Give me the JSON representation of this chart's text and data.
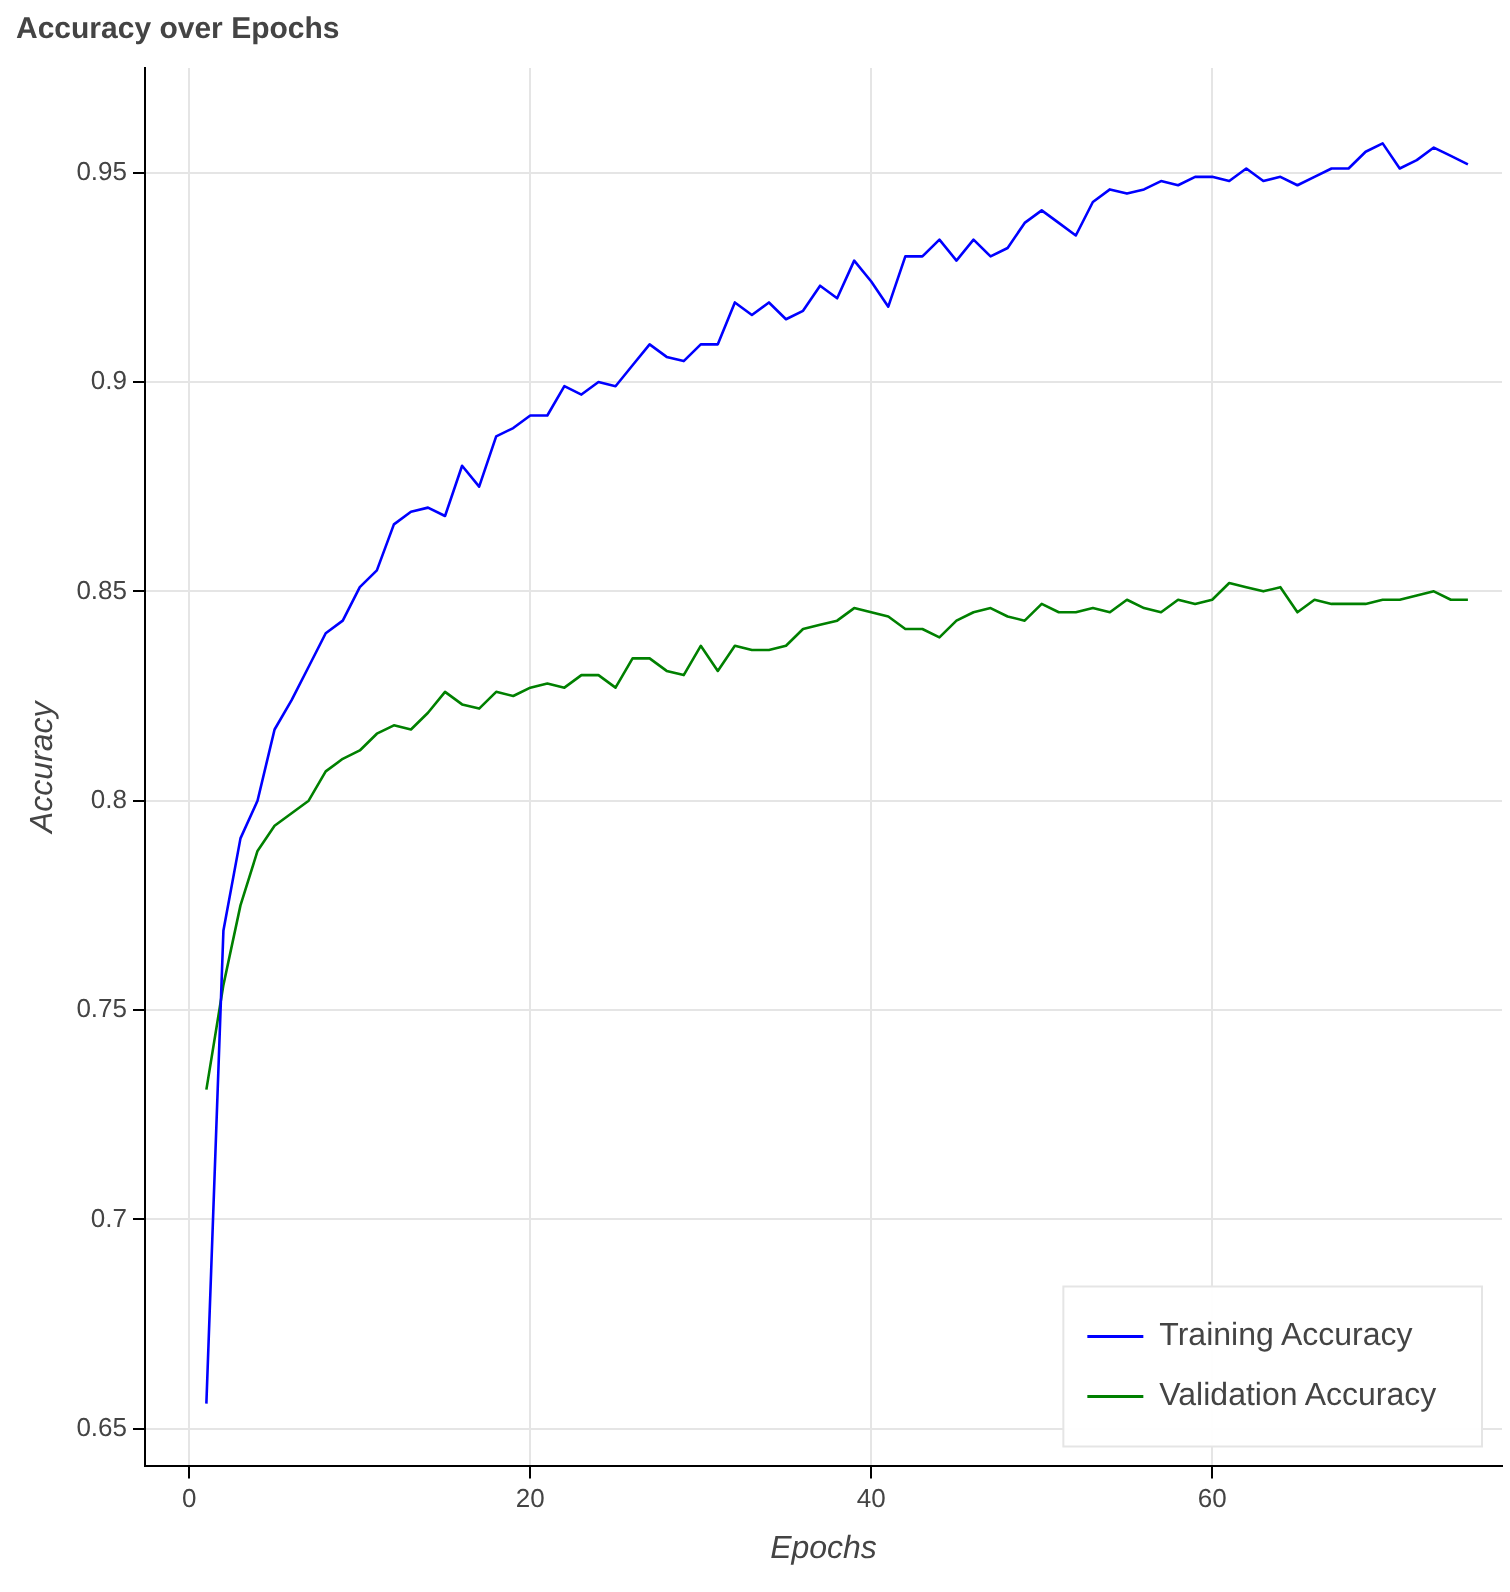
{
  "chart_data": {
    "type": "line",
    "title": "Accuracy over Epochs",
    "xlabel": "Epochs",
    "ylabel": "Accuracy",
    "x": [
      1,
      2,
      3,
      4,
      5,
      6,
      7,
      8,
      9,
      10,
      11,
      12,
      13,
      14,
      15,
      16,
      17,
      18,
      19,
      20,
      21,
      22,
      23,
      24,
      25,
      26,
      27,
      28,
      29,
      30,
      31,
      32,
      33,
      34,
      35,
      36,
      37,
      38,
      39,
      40,
      41,
      42,
      43,
      44,
      45,
      46,
      47,
      48,
      49,
      50,
      51,
      52,
      53,
      54,
      55,
      56,
      57,
      58,
      59,
      60,
      61,
      62,
      63,
      64,
      65,
      66,
      67,
      68,
      69,
      70,
      71,
      72,
      73,
      74,
      75
    ],
    "series": [
      {
        "name": "Training Accuracy",
        "color": "#0000ff",
        "values": [
          0.656,
          0.769,
          0.791,
          0.8,
          0.817,
          0.824,
          0.832,
          0.84,
          0.843,
          0.851,
          0.855,
          0.866,
          0.869,
          0.87,
          0.868,
          0.88,
          0.875,
          0.887,
          0.889,
          0.892,
          0.892,
          0.899,
          0.897,
          0.9,
          0.899,
          0.904,
          0.909,
          0.906,
          0.905,
          0.909,
          0.909,
          0.919,
          0.916,
          0.919,
          0.915,
          0.917,
          0.923,
          0.92,
          0.929,
          0.924,
          0.918,
          0.93,
          0.93,
          0.934,
          0.929,
          0.934,
          0.93,
          0.932,
          0.938,
          0.941,
          0.938,
          0.935,
          0.943,
          0.946,
          0.945,
          0.946,
          0.948,
          0.947,
          0.949,
          0.949,
          0.948,
          0.951,
          0.948,
          0.949,
          0.947,
          0.949,
          0.951,
          0.951,
          0.955,
          0.957,
          0.951,
          0.953,
          0.956,
          0.954,
          0.952
        ]
      },
      {
        "name": "Validation Accuracy",
        "color": "#008000",
        "values": [
          0.731,
          0.756,
          0.775,
          0.788,
          0.794,
          0.797,
          0.8,
          0.807,
          0.81,
          0.812,
          0.816,
          0.818,
          0.817,
          0.821,
          0.826,
          0.823,
          0.822,
          0.826,
          0.825,
          0.827,
          0.828,
          0.827,
          0.83,
          0.83,
          0.827,
          0.834,
          0.834,
          0.831,
          0.83,
          0.837,
          0.831,
          0.837,
          0.836,
          0.836,
          0.837,
          0.841,
          0.842,
          0.843,
          0.846,
          0.845,
          0.844,
          0.841,
          0.841,
          0.839,
          0.843,
          0.845,
          0.846,
          0.844,
          0.843,
          0.847,
          0.845,
          0.845,
          0.846,
          0.845,
          0.848,
          0.846,
          0.845,
          0.848,
          0.847,
          0.848,
          0.852,
          0.851,
          0.85,
          0.851,
          0.845,
          0.848,
          0.847,
          0.847,
          0.847,
          0.848,
          0.848,
          0.849,
          0.85,
          0.848,
          0.848
        ]
      }
    ],
    "xlim": [
      -2.6,
      77
    ],
    "xticks": [
      0,
      20,
      40,
      60
    ],
    "ylim": [
      0.641,
      0.975
    ],
    "yticks": [
      0.65,
      0.7,
      0.75,
      0.8,
      0.85,
      0.9,
      0.95
    ],
    "grid": true,
    "legend": "bottom right",
    "marker": "none",
    "line_style": "solid"
  }
}
